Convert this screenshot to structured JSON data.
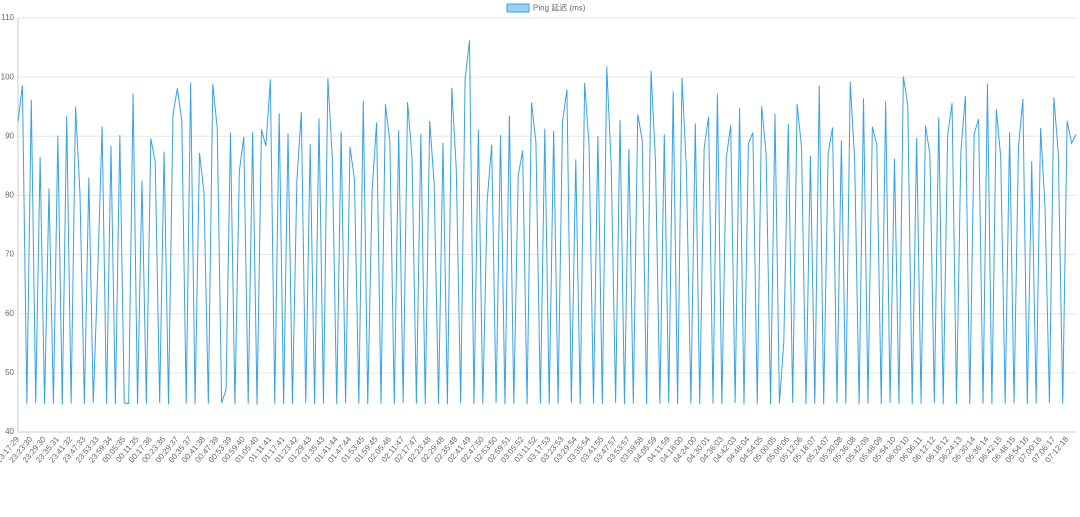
{
  "chart_data": {
    "type": "line",
    "categories": [
      "23:17:29",
      null,
      null,
      "23:23:30",
      null,
      null,
      "23:29:30",
      null,
      null,
      "23:35:31",
      null,
      null,
      "23:41:32",
      null,
      null,
      "23:47:33",
      null,
      null,
      "23:53:33",
      null,
      null,
      "23:59:34",
      null,
      null,
      "00:05:35",
      null,
      null,
      "00:11:35",
      null,
      null,
      "00:17:36",
      null,
      null,
      "00:23:36",
      null,
      null,
      "00:29:37",
      null,
      null,
      "00:35:37",
      null,
      null,
      "00:41:38",
      null,
      null,
      "00:47:39",
      null,
      null,
      "00:53:39",
      null,
      null,
      "00:59:40",
      null,
      null,
      "01:05:40",
      null,
      null,
      "01:11:41",
      null,
      null,
      "01:17:41",
      null,
      null,
      "01:23:42",
      null,
      null,
      "01:29:43",
      null,
      null,
      "01:35:43",
      null,
      null,
      "01:41:44",
      null,
      null,
      "01:47:44",
      null,
      null,
      "01:53:45",
      null,
      null,
      "01:59:45",
      null,
      null,
      "02:05:46",
      null,
      null,
      "02:11:47",
      null,
      null,
      "02:17:47",
      null,
      null,
      "02:23:48",
      null,
      null,
      "02:29:48",
      null,
      null,
      "02:35:49",
      null,
      null,
      "02:41:49",
      null,
      null,
      "02:47:50",
      null,
      null,
      "02:53:50",
      null,
      null,
      "02:59:51",
      null,
      null,
      "03:05:52",
      null,
      null,
      "03:11:52",
      null,
      null,
      "03:17:53",
      null,
      null,
      "03:23:53",
      null,
      null,
      "03:29:54",
      null,
      null,
      "03:35:54",
      null,
      null,
      "03:41:55",
      null,
      null,
      "03:47:57",
      null,
      null,
      "03:53:57",
      null,
      null,
      "03:59:58",
      null,
      null,
      "04:05:59",
      null,
      null,
      "04:11:59",
      null,
      null,
      "04:18:00",
      null,
      null,
      "04:24:00",
      null,
      null,
      "04:30:01",
      null,
      null,
      "04:36:03",
      null,
      null,
      "04:42:03",
      null,
      null,
      "04:48:04",
      null,
      null,
      "04:54:05",
      null,
      null,
      "05:00:05",
      null,
      null,
      "05:06:06",
      null,
      null,
      "05:12:06",
      null,
      null,
      "05:18:07",
      null,
      null,
      "05:24:07",
      null,
      null,
      "05:30:08",
      null,
      null,
      "05:36:08",
      null,
      null,
      "05:42:09",
      null,
      null,
      "05:48:09",
      null,
      null,
      "05:54:10",
      null,
      null,
      "06:00:10",
      null,
      null,
      "06:06:11",
      null,
      null,
      "06:12:12",
      null,
      null,
      "06:18:12",
      null,
      null,
      "06:24:13",
      null,
      null,
      "06:30:14",
      null,
      null,
      "06:36:14",
      null,
      null,
      "06:42:15",
      null,
      null,
      "06:48:15",
      null,
      null,
      "06:54:16",
      null,
      null,
      "07:00:16",
      null,
      null,
      "07:06:17",
      null,
      null,
      "07:12:18",
      null,
      null
    ],
    "series": [
      {
        "name": "Ping 延迟 (ms)",
        "color": "#36a2eb",
        "legend_fill": "#9ad0f5",
        "values": [
          92.5,
          98.6,
          44.8,
          96.2,
          44.9,
          86.5,
          44.7,
          81.2,
          44.8,
          90.1,
          44.6,
          93.4,
          44.8,
          95.0,
          80.3,
          44.7,
          83.0,
          44.9,
          66.8,
          91.7,
          44.8,
          88.4,
          44.7,
          90.2,
          44.9,
          44.8,
          97.3,
          44.7,
          82.5,
          44.8,
          89.6,
          85.7,
          44.9,
          87.4,
          44.7,
          93.6,
          98.1,
          92.7,
          44.8,
          99.1,
          44.7,
          87.2,
          80.5,
          44.8,
          98.8,
          91.4,
          44.9,
          47.2,
          90.6,
          44.7,
          84.1,
          89.9,
          44.8,
          90.7,
          44.6,
          91.2,
          88.3,
          99.6,
          44.8,
          93.9,
          44.7,
          90.5,
          44.8,
          82.6,
          94.1,
          44.9,
          88.7,
          44.7,
          93.0,
          44.8,
          99.8,
          86.4,
          44.7,
          90.8,
          44.9,
          88.2,
          82.7,
          44.8,
          96.0,
          44.7,
          80.9,
          92.3,
          44.8,
          95.4,
          89.1,
          44.7,
          91.0,
          44.9,
          95.8,
          86.6,
          44.8,
          90.4,
          44.7,
          92.6,
          82.1,
          44.8,
          88.9,
          44.7,
          98.2,
          84.5,
          44.9,
          99.7,
          106.2,
          44.7,
          91.1,
          44.8,
          79.3,
          88.6,
          44.9,
          90.2,
          44.7,
          93.5,
          44.8,
          83.4,
          87.6,
          44.7,
          95.7,
          89.0,
          44.8,
          91.3,
          44.7,
          90.9,
          44.8,
          92.4,
          97.9,
          44.9,
          86.1,
          44.7,
          99.0,
          88.5,
          44.8,
          90.0,
          44.7,
          101.8,
          85.2,
          44.9,
          92.8,
          44.7,
          87.9,
          44.8,
          93.7,
          89.4,
          44.7,
          101.1,
          85.9,
          44.8,
          90.3,
          44.9,
          97.6,
          44.7,
          99.9,
          84.2,
          44.8,
          92.2,
          44.7,
          88.0,
          93.3,
          44.8,
          97.2,
          44.7,
          86.3,
          91.9,
          44.9,
          94.8,
          44.7,
          88.8,
          90.6,
          44.8,
          95.1,
          86.9,
          44.7,
          93.8,
          44.8,
          55.3,
          92.1,
          44.9,
          95.5,
          88.1,
          44.7,
          86.7,
          44.8,
          98.5,
          44.7,
          87.0,
          91.5,
          44.9,
          89.3,
          44.8,
          99.2,
          86.0,
          44.7,
          96.4,
          44.8,
          91.6,
          88.6,
          44.7,
          95.9,
          44.9,
          86.2,
          44.8,
          100.1,
          95.3,
          44.7,
          89.8,
          44.8,
          91.8,
          86.9,
          44.9,
          93.2,
          44.7,
          90.1,
          95.6,
          44.8,
          87.5,
          96.8,
          44.7,
          90.4,
          92.9,
          44.8,
          98.9,
          44.7,
          94.6,
          86.4,
          44.8,
          90.7,
          44.9,
          88.1,
          96.3,
          44.7,
          85.8,
          44.8,
          91.4,
          78.2,
          44.9,
          96.6,
          87.1,
          44.8,
          92.6,
          88.8,
          90.3
        ]
      }
    ],
    "ylim": [
      40,
      110
    ],
    "yticks": [
      40,
      50,
      60,
      70,
      80,
      90,
      100,
      110
    ],
    "grid": true,
    "legend": "top"
  }
}
